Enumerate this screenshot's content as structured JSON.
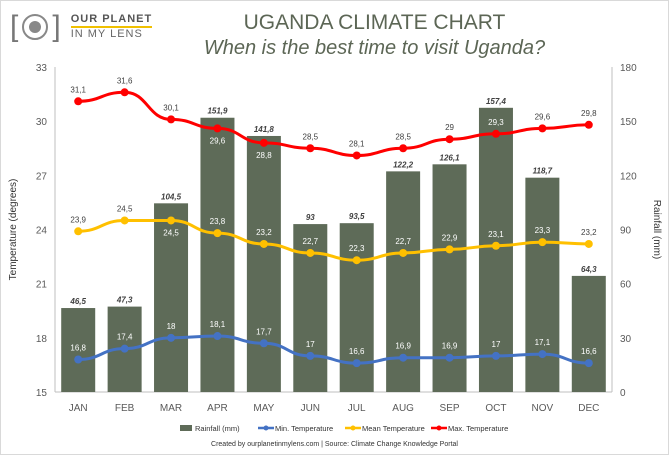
{
  "logo": {
    "line1": "OUR PLANET",
    "line2": "IN MY LENS"
  },
  "header": {
    "title": "UGANDA CLIMATE CHART",
    "subtitle": "When is the best time to visit Uganda?"
  },
  "footer": "Created by ourplanetinmylens.com | Source: Climate Change Knowledge Portal",
  "chart_data": {
    "type": "bar+line",
    "categories": [
      "JAN",
      "FEB",
      "MAR",
      "APR",
      "MAY",
      "JUN",
      "JUL",
      "AUG",
      "SEP",
      "OCT",
      "NOV",
      "DEC"
    ],
    "ylabel": "Temperature (degrees)",
    "y2label": "Rainfall (mm)",
    "ylim": [
      15,
      33
    ],
    "yticks": [
      15,
      18,
      21,
      24,
      27,
      30,
      33
    ],
    "y2lim": [
      0,
      180
    ],
    "y2ticks": [
      0,
      30,
      60,
      90,
      120,
      150,
      180
    ],
    "grid": false,
    "legend": "bottom",
    "bars": {
      "name": "Rainfall (mm)",
      "color": "#5e6b58",
      "values": [
        46.5,
        47.3,
        104.5,
        151.9,
        141.8,
        93,
        93.5,
        122.2,
        126.1,
        157.4,
        118.7,
        64.3
      ]
    },
    "series": [
      {
        "name": "Min. Temperature",
        "color": "#4472c4",
        "values": [
          16.8,
          17.4,
          18,
          18.1,
          17.7,
          17,
          16.6,
          16.9,
          16.9,
          17,
          17.1,
          16.6
        ]
      },
      {
        "name": "Mean Temperature",
        "color": "#ffc000",
        "values": [
          23.9,
          24.5,
          24.5,
          23.8,
          23.2,
          22.7,
          22.3,
          22.7,
          22.9,
          23.1,
          23.3,
          23.2
        ]
      },
      {
        "name": "Max. Temperature",
        "color": "#ff0000",
        "values": [
          31.1,
          31.6,
          30.1,
          29.6,
          28.8,
          28.5,
          28.1,
          28.5,
          29,
          29.3,
          29.6,
          29.8
        ]
      }
    ]
  }
}
